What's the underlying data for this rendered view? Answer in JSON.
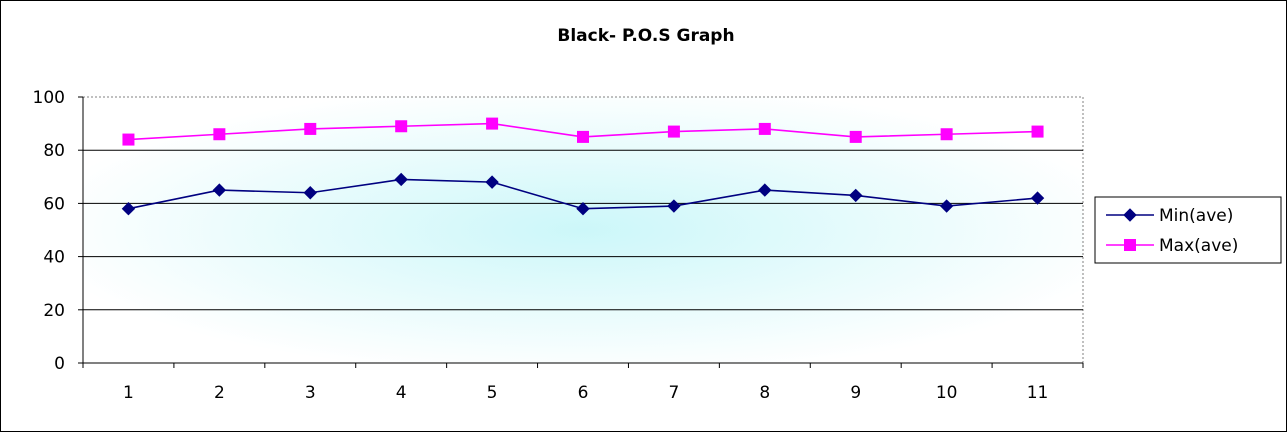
{
  "chart_data": {
    "type": "line",
    "title": "Black- P.O.S  Graph",
    "xlabel": "",
    "ylabel": "",
    "categories": [
      "1",
      "2",
      "3",
      "4",
      "5",
      "6",
      "7",
      "8",
      "9",
      "10",
      "11"
    ],
    "ylim": [
      0,
      100
    ],
    "yticks": [
      "0",
      "20",
      "40",
      "60",
      "80",
      "100"
    ],
    "grid": "horizontal",
    "legend_position": "right",
    "series": [
      {
        "name": "Min(ave)",
        "values": [
          58,
          65,
          64,
          69,
          68,
          58,
          59,
          65,
          63,
          59,
          62
        ],
        "color": "#000080",
        "marker": "diamond"
      },
      {
        "name": "Max(ave)",
        "values": [
          84,
          86,
          88,
          89,
          90,
          85,
          87,
          88,
          85,
          86,
          87
        ],
        "color": "#ff00ff",
        "marker": "square"
      }
    ]
  }
}
